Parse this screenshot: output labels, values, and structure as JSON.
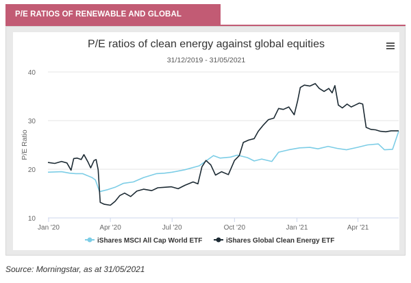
{
  "header": {
    "banner_text": "P/E RATIOS OF RENEWABLE AND GLOBAL EQUITIES",
    "banner_color": "#c25b74"
  },
  "footer": {
    "source": "Source: Morningstar, as at 31/05/2021"
  },
  "chart_menu": {
    "icon": "hamburger-menu-icon"
  },
  "chart_data": {
    "type": "line",
    "title": "P/E ratios of clean energy against global equities",
    "subtitle": "31/12/2019 - 31/05/2021",
    "xlabel": "",
    "ylabel": "P/E Ratio",
    "ylim": [
      10,
      40
    ],
    "yticks": [
      10,
      20,
      30,
      40
    ],
    "x_range": [
      "2019-12-31",
      "2021-05-31"
    ],
    "xtick_labels": [
      {
        "label": "Jan '20",
        "date": "2020-01-01"
      },
      {
        "label": "Apr '20",
        "date": "2020-04-01"
      },
      {
        "label": "Jul '20",
        "date": "2020-07-01"
      },
      {
        "label": "Oct '20",
        "date": "2020-10-01"
      },
      {
        "label": "Jan '21",
        "date": "2021-01-01"
      },
      {
        "label": "Apr '21",
        "date": "2021-04-01"
      }
    ],
    "grid": "horizontal",
    "legend_position": "bottom-center",
    "series": [
      {
        "name": "iShares MSCI All Cap World ETF",
        "color": "#7ccde6",
        "points": [
          [
            "2019-12-31",
            19.4
          ],
          [
            "2020-01-20",
            19.5
          ],
          [
            "2020-02-01",
            19.2
          ],
          [
            "2020-02-10",
            19.1
          ],
          [
            "2020-02-20",
            19.1
          ],
          [
            "2020-03-05",
            18.3
          ],
          [
            "2020-03-10",
            17.8
          ],
          [
            "2020-03-16",
            15.4
          ],
          [
            "2020-03-28",
            15.8
          ],
          [
            "2020-04-08",
            16.3
          ],
          [
            "2020-04-20",
            17.1
          ],
          [
            "2020-05-05",
            17.4
          ],
          [
            "2020-05-20",
            18.3
          ],
          [
            "2020-06-08",
            19.1
          ],
          [
            "2020-06-20",
            19.2
          ],
          [
            "2020-07-01",
            19.4
          ],
          [
            "2020-07-20",
            19.9
          ],
          [
            "2020-08-10",
            20.7
          ],
          [
            "2020-08-31",
            22.8
          ],
          [
            "2020-09-10",
            22.3
          ],
          [
            "2020-09-25",
            22.5
          ],
          [
            "2020-10-05",
            22.9
          ],
          [
            "2020-10-20",
            22.4
          ],
          [
            "2020-10-30",
            21.7
          ],
          [
            "2020-11-10",
            22.1
          ],
          [
            "2020-11-25",
            21.6
          ],
          [
            "2020-12-05",
            23.5
          ],
          [
            "2020-12-20",
            24.0
          ],
          [
            "2021-01-05",
            24.4
          ],
          [
            "2021-01-20",
            24.5
          ],
          [
            "2021-02-01",
            24.2
          ],
          [
            "2021-02-16",
            24.7
          ],
          [
            "2021-03-01",
            24.3
          ],
          [
            "2021-03-15",
            24.0
          ],
          [
            "2021-03-31",
            24.5
          ],
          [
            "2021-04-15",
            25.0
          ],
          [
            "2021-05-01",
            25.2
          ],
          [
            "2021-05-10",
            24.0
          ],
          [
            "2021-05-22",
            24.1
          ],
          [
            "2021-05-31",
            27.8
          ]
        ]
      },
      {
        "name": "iShares Global Clean Energy ETF",
        "color": "#1c2a33",
        "points": [
          [
            "2019-12-31",
            21.4
          ],
          [
            "2020-01-10",
            21.2
          ],
          [
            "2020-01-20",
            21.6
          ],
          [
            "2020-01-28",
            21.3
          ],
          [
            "2020-02-03",
            19.8
          ],
          [
            "2020-02-07",
            22.2
          ],
          [
            "2020-02-12",
            22.3
          ],
          [
            "2020-02-18",
            22.0
          ],
          [
            "2020-02-22",
            23.0
          ],
          [
            "2020-02-28",
            21.5
          ],
          [
            "2020-03-03",
            20.3
          ],
          [
            "2020-03-08",
            21.8
          ],
          [
            "2020-03-11",
            22.0
          ],
          [
            "2020-03-14",
            19.9
          ],
          [
            "2020-03-17",
            13.2
          ],
          [
            "2020-03-23",
            12.8
          ],
          [
            "2020-04-01",
            12.6
          ],
          [
            "2020-04-08",
            13.4
          ],
          [
            "2020-04-15",
            14.6
          ],
          [
            "2020-04-22",
            15.1
          ],
          [
            "2020-05-01",
            14.4
          ],
          [
            "2020-05-10",
            15.5
          ],
          [
            "2020-05-20",
            15.9
          ],
          [
            "2020-06-01",
            15.6
          ],
          [
            "2020-06-10",
            16.2
          ],
          [
            "2020-06-20",
            16.3
          ],
          [
            "2020-06-30",
            16.4
          ],
          [
            "2020-07-10",
            16.0
          ],
          [
            "2020-07-20",
            16.7
          ],
          [
            "2020-08-01",
            17.4
          ],
          [
            "2020-08-08",
            17.0
          ],
          [
            "2020-08-14",
            20.5
          ],
          [
            "2020-08-20",
            21.8
          ],
          [
            "2020-08-27",
            20.9
          ],
          [
            "2020-09-03",
            18.8
          ],
          [
            "2020-09-12",
            19.5
          ],
          [
            "2020-09-22",
            18.9
          ],
          [
            "2020-10-01",
            21.8
          ],
          [
            "2020-10-08",
            22.8
          ],
          [
            "2020-10-14",
            25.5
          ],
          [
            "2020-10-22",
            26.0
          ],
          [
            "2020-10-30",
            26.3
          ],
          [
            "2020-11-05",
            27.8
          ],
          [
            "2020-11-12",
            29.0
          ],
          [
            "2020-11-20",
            30.2
          ],
          [
            "2020-11-28",
            30.5
          ],
          [
            "2020-12-05",
            32.5
          ],
          [
            "2020-12-12",
            32.3
          ],
          [
            "2020-12-20",
            32.8
          ],
          [
            "2020-12-28",
            31.2
          ],
          [
            "2021-01-02",
            34.0
          ],
          [
            "2021-01-06",
            36.8
          ],
          [
            "2021-01-12",
            37.3
          ],
          [
            "2021-01-20",
            37.1
          ],
          [
            "2021-01-28",
            37.6
          ],
          [
            "2021-02-03",
            36.6
          ],
          [
            "2021-02-10",
            36.0
          ],
          [
            "2021-02-17",
            36.6
          ],
          [
            "2021-02-22",
            35.7
          ],
          [
            "2021-02-26",
            37.2
          ],
          [
            "2021-03-03",
            33.2
          ],
          [
            "2021-03-09",
            32.6
          ],
          [
            "2021-03-16",
            33.4
          ],
          [
            "2021-03-22",
            32.8
          ],
          [
            "2021-03-28",
            33.2
          ],
          [
            "2021-04-03",
            33.6
          ],
          [
            "2021-04-08",
            33.4
          ],
          [
            "2021-04-13",
            28.6
          ],
          [
            "2021-04-20",
            28.2
          ],
          [
            "2021-04-27",
            28.1
          ],
          [
            "2021-05-04",
            27.8
          ],
          [
            "2021-05-12",
            27.7
          ],
          [
            "2021-05-20",
            27.9
          ],
          [
            "2021-05-31",
            27.9
          ]
        ]
      }
    ]
  }
}
